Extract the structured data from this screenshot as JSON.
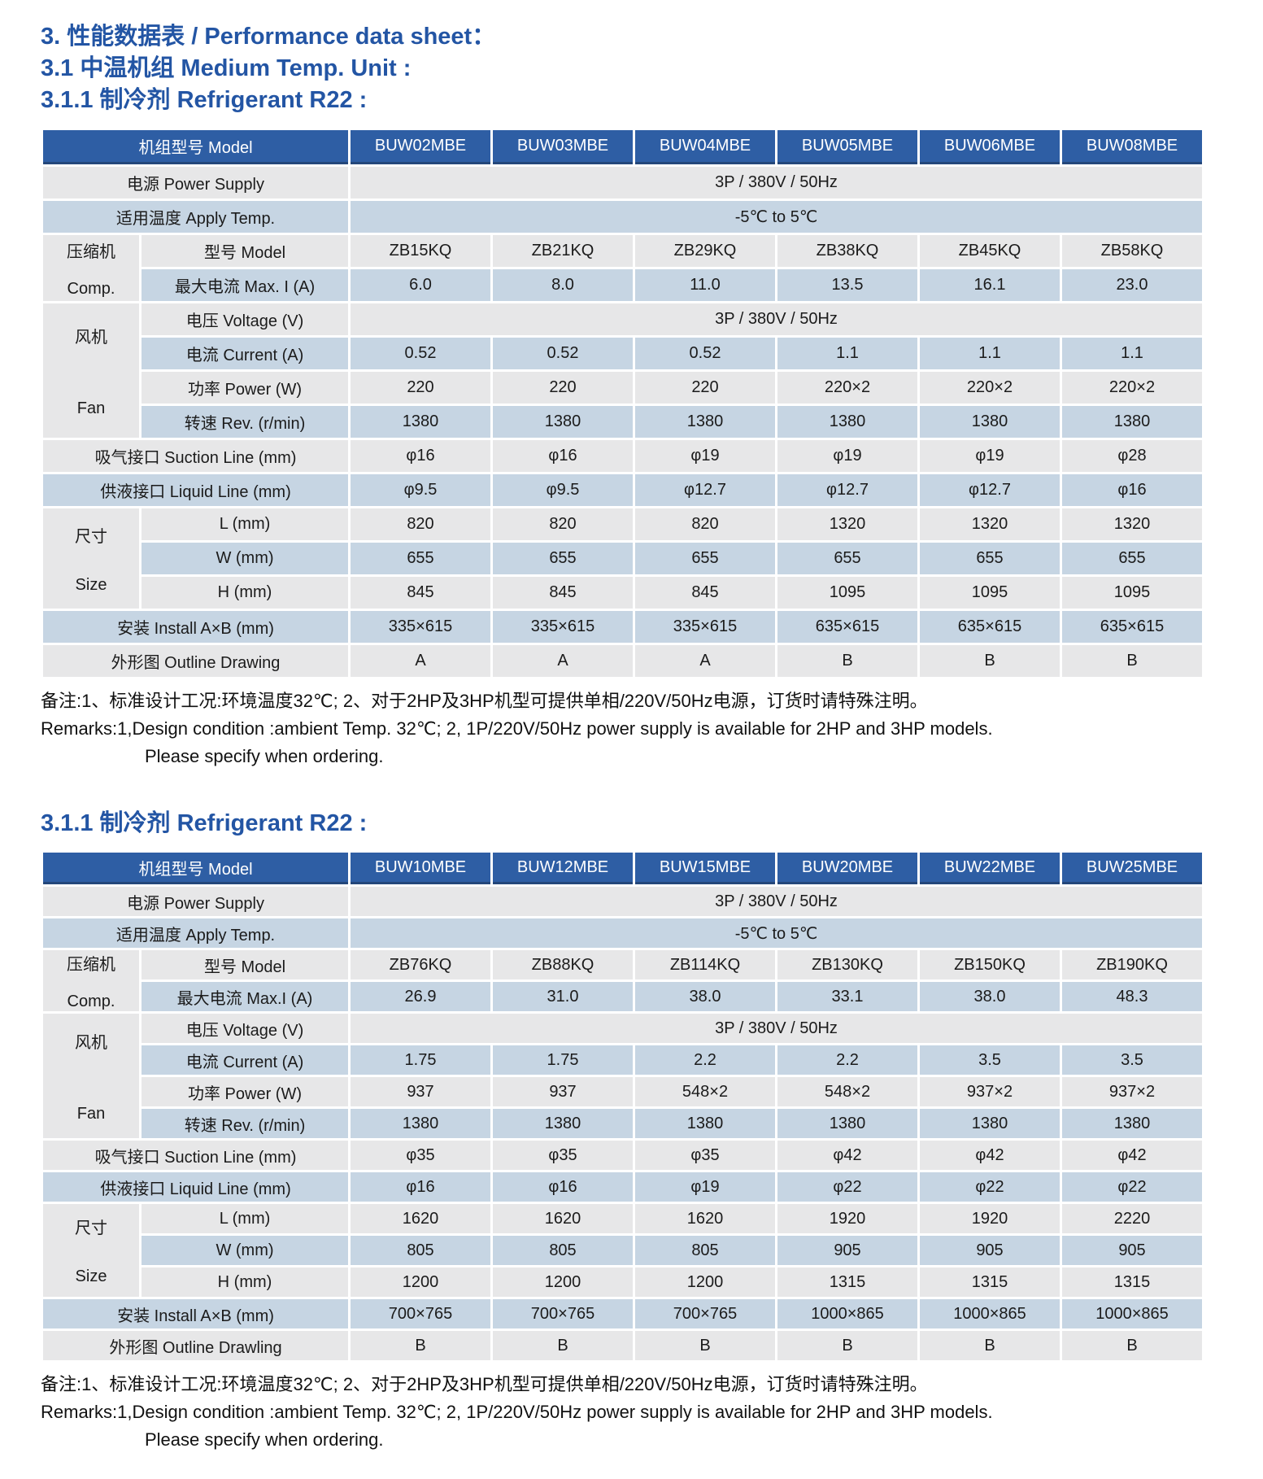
{
  "headings": {
    "title": "3. 性能数据表 / Performance data sheet：",
    "subtitle": "3.1 中温机组 Medium Temp. Unit :",
    "section_r22": "3.1.1 制冷剂 Refrigerant R22 :"
  },
  "remarks": {
    "zh": "备注:1、标准设计工况:环境温度32℃; 2、对于2HP及3HP机型可提供单相/220V/50Hz电源，订货时请特殊注明。",
    "en": "Remarks:1,Design condition :ambient Temp. 32℃;  2, 1P/220V/50Hz power supply is available for 2HP and 3HP models.",
    "en2": "Please specify when ordering."
  },
  "colors": {
    "header_blue": "#2e5ea4",
    "row_blue": "#c6d5e3",
    "row_gray": "#e7e7e8",
    "heading_text": "#2355a4"
  },
  "table1": {
    "header": [
      "机组型号 Model",
      "BUW02MBE",
      "BUW03MBE",
      "BUW04MBE",
      "BUW05MBE",
      "BUW06MBE",
      "BUW08MBE"
    ],
    "power_label": "电源 Power Supply",
    "power_value": "3P / 380V / 50Hz",
    "temp_label": "适用温度 Apply Temp.",
    "temp_value": "-5℃ to 5℃",
    "comp_zh": "压缩机",
    "comp_en": "Comp.",
    "comp_model_label": "型号 Model",
    "comp_model": [
      "ZB15KQ",
      "ZB21KQ",
      "ZB29KQ",
      "ZB38KQ",
      "ZB45KQ",
      "ZB58KQ"
    ],
    "comp_maxi_label": "最大电流 Max. I (A)",
    "comp_maxi": [
      "6.0",
      "8.0",
      "11.0",
      "13.5",
      "16.1",
      "23.0"
    ],
    "fan_zh": "风机",
    "fan_en": "Fan",
    "fan_voltage_label": "电压 Voltage (V)",
    "fan_voltage_value": "3P / 380V / 50Hz",
    "fan_current_label": "电流 Current (A)",
    "fan_current": [
      "0.52",
      "0.52",
      "0.52",
      "1.1",
      "1.1",
      "1.1"
    ],
    "fan_power_label": "功率 Power (W)",
    "fan_power": [
      "220",
      "220",
      "220",
      "220×2",
      "220×2",
      "220×2"
    ],
    "fan_rev_label": "转速 Rev. (r/min)",
    "fan_rev": [
      "1380",
      "1380",
      "1380",
      "1380",
      "1380",
      "1380"
    ],
    "suction_label": "吸气接口 Suction Line (mm)",
    "suction": [
      "φ16",
      "φ16",
      "φ19",
      "φ19",
      "φ19",
      "φ28"
    ],
    "liquid_label": "供液接口 Liquid Line (mm)",
    "liquid": [
      "φ9.5",
      "φ9.5",
      "φ12.7",
      "φ12.7",
      "φ12.7",
      "φ16"
    ],
    "size_zh": "尺寸",
    "size_en": "Size",
    "size_l_label": "L (mm)",
    "size_l": [
      "820",
      "820",
      "820",
      "1320",
      "1320",
      "1320"
    ],
    "size_w_label": "W (mm)",
    "size_w": [
      "655",
      "655",
      "655",
      "655",
      "655",
      "655"
    ],
    "size_h_label": "H (mm)",
    "size_h": [
      "845",
      "845",
      "845",
      "1095",
      "1095",
      "1095"
    ],
    "install_label": "安装 Install A×B (mm)",
    "install": [
      "335×615",
      "335×615",
      "335×615",
      "635×615",
      "635×615",
      "635×615"
    ],
    "outline_label": "外形图 Outline Drawing",
    "outline": [
      "A",
      "A",
      "A",
      "B",
      "B",
      "B"
    ]
  },
  "table2": {
    "header": [
      "机组型号 Model",
      "BUW10MBE",
      "BUW12MBE",
      "BUW15MBE",
      "BUW20MBE",
      "BUW22MBE",
      "BUW25MBE"
    ],
    "power_label": "电源 Power Supply",
    "power_value": "3P / 380V / 50Hz",
    "temp_label": "适用温度 Apply Temp.",
    "temp_value": "-5℃ to 5℃",
    "comp_zh": "压缩机",
    "comp_en": "Comp.",
    "comp_model_label": "型号 Model",
    "comp_model": [
      "ZB76KQ",
      "ZB88KQ",
      "ZB114KQ",
      "ZB130KQ",
      "ZB150KQ",
      "ZB190KQ"
    ],
    "comp_maxi_label": "最大电流 Max.I (A)",
    "comp_maxi": [
      "26.9",
      "31.0",
      "38.0",
      "33.1",
      "38.0",
      "48.3"
    ],
    "fan_zh": "风机",
    "fan_en": "Fan",
    "fan_voltage_label": "电压 Voltage (V)",
    "fan_voltage_value": "3P / 380V / 50Hz",
    "fan_current_label": "电流 Current (A)",
    "fan_current": [
      "1.75",
      "1.75",
      "2.2",
      "2.2",
      "3.5",
      "3.5"
    ],
    "fan_power_label": "功率 Power (W)",
    "fan_power": [
      "937",
      "937",
      "548×2",
      "548×2",
      "937×2",
      "937×2"
    ],
    "fan_rev_label": "转速 Rev. (r/min)",
    "fan_rev": [
      "1380",
      "1380",
      "1380",
      "1380",
      "1380",
      "1380"
    ],
    "suction_label": "吸气接口 Suction Line (mm)",
    "suction": [
      "φ35",
      "φ35",
      "φ35",
      "φ42",
      "φ42",
      "φ42"
    ],
    "liquid_label": "供液接口 Liquid Line (mm)",
    "liquid": [
      "φ16",
      "φ16",
      "φ19",
      "φ22",
      "φ22",
      "φ22"
    ],
    "size_zh": "尺寸",
    "size_en": "Size",
    "size_l_label": "L (mm)",
    "size_l": [
      "1620",
      "1620",
      "1620",
      "1920",
      "1920",
      "2220"
    ],
    "size_w_label": "W (mm)",
    "size_w": [
      "805",
      "805",
      "805",
      "905",
      "905",
      "905"
    ],
    "size_h_label": "H (mm)",
    "size_h": [
      "1200",
      "1200",
      "1200",
      "1315",
      "1315",
      "1315"
    ],
    "install_label": "安装 Install A×B (mm)",
    "install": [
      "700×765",
      "700×765",
      "700×765",
      "1000×865",
      "1000×865",
      "1000×865"
    ],
    "outline_label": "外形图 Outline Drawling",
    "outline": [
      "B",
      "B",
      "B",
      "B",
      "B",
      "B"
    ]
  }
}
